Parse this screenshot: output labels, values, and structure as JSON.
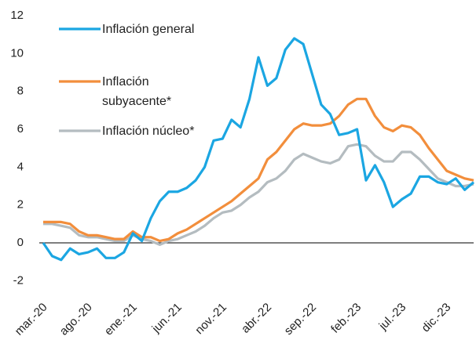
{
  "chart_data": {
    "type": "line",
    "categories": [
      "mar.-20",
      null,
      null,
      null,
      null,
      "ago.-20",
      null,
      null,
      null,
      null,
      "ene.-21",
      null,
      null,
      null,
      null,
      "jun.-21",
      null,
      null,
      null,
      null,
      "nov.-21",
      null,
      null,
      null,
      null,
      "abr.-22",
      null,
      null,
      null,
      null,
      "sep.-22",
      null,
      null,
      null,
      null,
      "feb.-23",
      null,
      null,
      null,
      null,
      "jul.-23",
      null,
      null,
      null,
      null,
      "dic.-23",
      null,
      null,
      null
    ],
    "series": [
      {
        "name": "Inflación general",
        "color": "#1ba6e2",
        "values": [
          0.0,
          -0.7,
          -0.9,
          -0.3,
          -0.6,
          -0.5,
          -0.3,
          -0.8,
          -0.8,
          -0.5,
          0.5,
          0.1,
          1.3,
          2.2,
          2.7,
          2.7,
          2.9,
          3.3,
          4.0,
          5.4,
          5.5,
          6.5,
          6.1,
          7.6,
          9.8,
          8.3,
          8.7,
          10.2,
          10.8,
          10.5,
          8.9,
          7.3,
          6.8,
          5.7,
          5.8,
          6.0,
          3.3,
          4.1,
          3.2,
          1.9,
          2.3,
          2.6,
          3.5,
          3.5,
          3.2,
          3.1,
          3.4,
          2.8,
          3.2
        ]
      },
      {
        "name": "Inflación subyacente*",
        "color": "#f28e3c",
        "values": [
          1.1,
          1.1,
          1.1,
          1.0,
          0.6,
          0.4,
          0.4,
          0.3,
          0.2,
          0.2,
          0.6,
          0.3,
          0.3,
          0.1,
          0.2,
          0.5,
          0.7,
          1.0,
          1.3,
          1.6,
          1.9,
          2.2,
          2.6,
          3.0,
          3.4,
          4.4,
          4.8,
          5.4,
          6.0,
          6.3,
          6.2,
          6.2,
          6.3,
          6.7,
          7.3,
          7.6,
          7.6,
          6.7,
          6.1,
          5.9,
          6.2,
          6.1,
          5.7,
          5.0,
          4.4,
          3.8,
          3.6,
          3.4,
          3.3
        ]
      },
      {
        "name": "Inflación núcleo*",
        "color": "#b4bcc0",
        "values": [
          1.0,
          1.0,
          0.9,
          0.8,
          0.4,
          0.3,
          0.3,
          0.2,
          0.1,
          0.1,
          0.4,
          0.2,
          0.1,
          -0.1,
          0.1,
          0.2,
          0.4,
          0.6,
          0.9,
          1.3,
          1.6,
          1.7,
          2.0,
          2.4,
          2.7,
          3.2,
          3.4,
          3.8,
          4.4,
          4.7,
          4.5,
          4.3,
          4.2,
          4.4,
          5.1,
          5.2,
          5.1,
          4.6,
          4.3,
          4.3,
          4.8,
          4.8,
          4.4,
          3.9,
          3.4,
          3.2,
          3.0,
          3.0,
          3.1
        ]
      }
    ],
    "ylim": [
      -2,
      12
    ],
    "yticks": [
      -2,
      0,
      2,
      4,
      6,
      8,
      10,
      12
    ],
    "grid": false,
    "legend": "top-left"
  }
}
